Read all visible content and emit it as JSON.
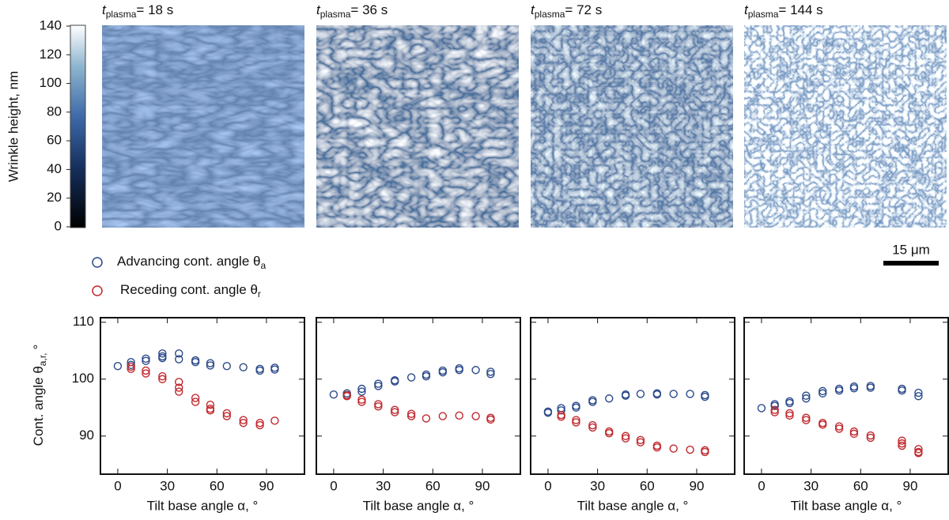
{
  "colorbar": {
    "label": "Wrinkle height, nm",
    "lim": [
      0,
      140
    ],
    "ticks": [
      0,
      20,
      40,
      60,
      80,
      100,
      120,
      140
    ]
  },
  "scale_bar": "15 μm",
  "chart_data": [
    {
      "type": "scatter",
      "title_symbol": "t",
      "title_subscript": "plasma",
      "title": "= 18 s",
      "xlabel": "Tilt base angle α, °",
      "ylabel": "Cont. angle θ",
      "ylabel_subscript": "a,r,",
      "ylabel_end": "°",
      "xlim": [
        -10.5,
        113
      ],
      "xticks": [
        0,
        30,
        60,
        90
      ],
      "ylim": [
        83.3,
        110.8
      ],
      "yticks": [
        90,
        100,
        110
      ],
      "series": [
        {
          "name": "Advancing cont. angle θ",
          "name_subscript": "a",
          "color": "#2b4a8a",
          "x": [
            0,
            8,
            8,
            17,
            17,
            27,
            27,
            27,
            37,
            37,
            47,
            47,
            56,
            56,
            66,
            76,
            86,
            86,
            95,
            95
          ],
          "values": [
            102.3,
            102.5,
            103,
            103.2,
            103.6,
            104,
            104.5,
            103.7,
            104.5,
            103.5,
            103.3,
            103,
            102.8,
            102.4,
            102.3,
            102.1,
            101.8,
            101.5,
            102,
            101.7
          ]
        },
        {
          "name": "Receding cont. angle θ",
          "name_subscript": "r",
          "color": "#c0282d",
          "x": [
            8,
            8,
            17,
            17,
            27,
            27,
            37,
            37,
            37,
            47,
            47,
            56,
            56,
            56,
            66,
            66,
            76,
            76,
            86,
            86,
            95
          ],
          "values": [
            101.8,
            102.2,
            101.5,
            101,
            100.5,
            100,
            99.5,
            98.5,
            97.8,
            96.7,
            96,
            95.5,
            94.8,
            94.5,
            94,
            93.5,
            92.8,
            92.3,
            92.3,
            91.9,
            92.7
          ]
        }
      ]
    },
    {
      "type": "scatter",
      "title_symbol": "t",
      "title_subscript": "plasma",
      "title": "= 36 s",
      "xlabel": "Tilt base angle α, °",
      "xlim": [
        -10.5,
        113
      ],
      "xticks": [
        0,
        30,
        60,
        90
      ],
      "ylim": [
        83.3,
        110.8
      ],
      "yticks": [
        90,
        100,
        110
      ],
      "series": [
        {
          "color": "#2b4a8a",
          "x": [
            0,
            8,
            8,
            17,
            17,
            27,
            27,
            37,
            37,
            47,
            56,
            56,
            66,
            66,
            76,
            76,
            86,
            95,
            95
          ],
          "values": [
            97.3,
            97.5,
            97.2,
            98.3,
            97.8,
            99.2,
            98.8,
            99.8,
            99.6,
            100.3,
            100.8,
            100.5,
            101.5,
            101.2,
            101.9,
            101.6,
            101.6,
            101.3,
            100.9
          ]
        },
        {
          "color": "#c0282d",
          "x": [
            8,
            8,
            17,
            17,
            27,
            27,
            37,
            37,
            47,
            47,
            56,
            66,
            76,
            86,
            95,
            95
          ],
          "values": [
            97,
            97.2,
            96.4,
            96,
            95.6,
            95.2,
            94.6,
            94.2,
            93.9,
            93.5,
            93.1,
            93.5,
            93.6,
            93.5,
            93.2,
            92.9
          ]
        }
      ]
    },
    {
      "type": "scatter",
      "title_symbol": "t",
      "title_subscript": "plasma",
      "title": "= 72 s",
      "xlabel": "Tilt base angle α, °",
      "xlim": [
        -10.5,
        113
      ],
      "xticks": [
        0,
        30,
        60,
        90
      ],
      "ylim": [
        83.3,
        110.8
      ],
      "yticks": [
        90,
        100,
        110
      ],
      "series": [
        {
          "color": "#2b4a8a",
          "x": [
            0,
            0,
            8,
            8,
            17,
            17,
            27,
            27,
            37,
            47,
            47,
            56,
            66,
            66,
            76,
            86,
            95,
            95
          ],
          "values": [
            94.1,
            94.3,
            94.5,
            94.9,
            95.3,
            95,
            96,
            96.3,
            96.6,
            97.1,
            97.3,
            97.4,
            97.5,
            97.3,
            97.4,
            97.4,
            97.2,
            96.9
          ]
        },
        {
          "color": "#c0282d",
          "x": [
            8,
            8,
            17,
            17,
            27,
            27,
            37,
            37,
            47,
            47,
            56,
            56,
            66,
            66,
            76,
            86,
            95,
            95
          ],
          "values": [
            93.7,
            93.4,
            92.8,
            92.4,
            91.9,
            91.5,
            90.8,
            90.5,
            90,
            89.6,
            89.3,
            88.9,
            88.3,
            88,
            87.8,
            87.6,
            87.5,
            87.2
          ]
        }
      ]
    },
    {
      "type": "scatter",
      "title_symbol": "t",
      "title_subscript": "plasma",
      "title": "= 144 s",
      "xlabel": "Tilt base angle α, °",
      "xlim": [
        -10.5,
        113
      ],
      "xticks": [
        0,
        30,
        60,
        90
      ],
      "ylim": [
        83.3,
        110.8
      ],
      "yticks": [
        90,
        100,
        110
      ],
      "series": [
        {
          "color": "#2b4a8a",
          "x": [
            0,
            8,
            8,
            17,
            17,
            27,
            27,
            37,
            37,
            47,
            47,
            56,
            56,
            66,
            66,
            85,
            85,
            95,
            95
          ],
          "values": [
            94.9,
            95.3,
            95.6,
            96.1,
            95.8,
            97.1,
            96.6,
            97.5,
            97.9,
            98,
            98.3,
            98.4,
            98.7,
            98.5,
            98.8,
            98.3,
            98,
            97.6,
            97
          ]
        },
        {
          "color": "#c0282d",
          "x": [
            8,
            8,
            17,
            17,
            27,
            27,
            37,
            37,
            47,
            47,
            56,
            56,
            66,
            66,
            85,
            85,
            85,
            95,
            95,
            95
          ],
          "values": [
            94.6,
            94.2,
            94,
            93.6,
            93.2,
            92.8,
            92.3,
            92,
            91.7,
            91.3,
            90.8,
            90.4,
            90.1,
            89.7,
            89.2,
            88.7,
            88.3,
            87.7,
            87.2,
            87
          ]
        }
      ]
    }
  ]
}
